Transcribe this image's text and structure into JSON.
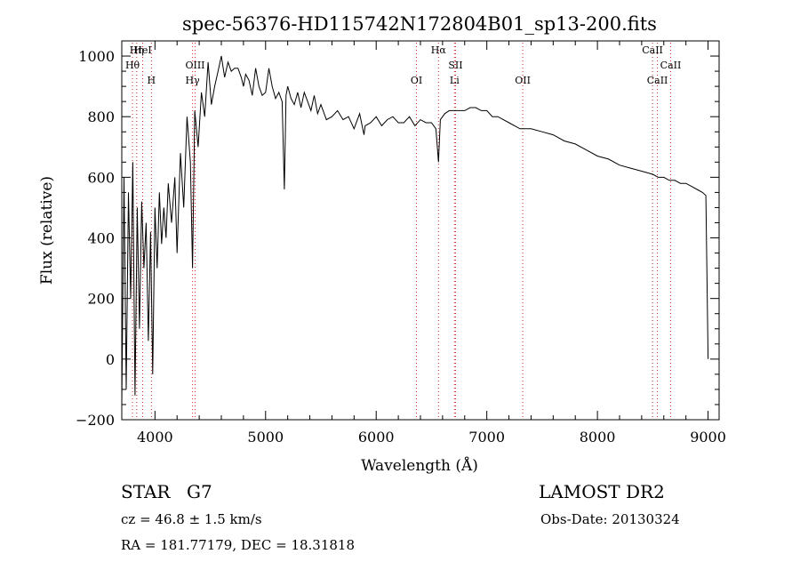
{
  "chart_data": {
    "type": "line",
    "title": "spec-56376-HD115742N172804B01_sp13-200.fits",
    "xlabel": "Wavelength (Å)",
    "ylabel": "Flux (relative)",
    "xlim": [
      3700,
      9100
    ],
    "ylim": [
      -200,
      1050
    ],
    "xticks": [
      4000,
      5000,
      6000,
      7000,
      8000,
      9000
    ],
    "yticks": [
      -200,
      0,
      200,
      400,
      600,
      800,
      1000
    ],
    "grid": false,
    "series": [
      {
        "x": [
          3700,
          3720,
          3740,
          3760,
          3780,
          3800,
          3820,
          3840,
          3860,
          3880,
          3900,
          3920,
          3940,
          3960,
          3980,
          4000,
          4020,
          4040,
          4060,
          4080,
          4100,
          4120,
          4150,
          4180,
          4200,
          4230,
          4260,
          4290,
          4320,
          4340,
          4360,
          4390,
          4420,
          4450,
          4480,
          4510,
          4540,
          4570,
          4600,
          4630,
          4660,
          4690,
          4720,
          4750,
          4780,
          4800,
          4820,
          4850,
          4880,
          4910,
          4940,
          4970,
          5000,
          5030,
          5060,
          5090,
          5120,
          5150,
          5170,
          5185,
          5200,
          5230,
          5260,
          5290,
          5320,
          5350,
          5380,
          5410,
          5440,
          5470,
          5500,
          5550,
          5600,
          5650,
          5700,
          5750,
          5800,
          5850,
          5890,
          5900,
          5950,
          6000,
          6050,
          6100,
          6150,
          6200,
          6250,
          6300,
          6350,
          6400,
          6450,
          6500,
          6540,
          6563,
          6580,
          6620,
          6660,
          6700,
          6750,
          6800,
          6850,
          6900,
          6950,
          7000,
          7050,
          7100,
          7200,
          7300,
          7400,
          7500,
          7600,
          7700,
          7800,
          7900,
          8000,
          8100,
          8200,
          8300,
          8400,
          8500,
          8550,
          8600,
          8650,
          8700,
          8750,
          8800,
          8850,
          8900,
          8950,
          8980,
          9000
        ],
        "y": [
          -150,
          600,
          -100,
          550,
          200,
          650,
          -120,
          500,
          100,
          520,
          300,
          450,
          60,
          420,
          -50,
          500,
          300,
          550,
          380,
          500,
          400,
          580,
          450,
          600,
          350,
          680,
          500,
          800,
          650,
          300,
          820,
          700,
          880,
          800,
          980,
          840,
          900,
          950,
          1000,
          930,
          980,
          950,
          960,
          960,
          930,
          900,
          940,
          920,
          870,
          960,
          900,
          870,
          880,
          960,
          900,
          860,
          880,
          850,
          560,
          870,
          900,
          860,
          840,
          880,
          830,
          880,
          850,
          820,
          870,
          810,
          840,
          790,
          800,
          820,
          790,
          800,
          760,
          810,
          740,
          770,
          780,
          800,
          770,
          790,
          800,
          780,
          780,
          800,
          770,
          790,
          780,
          780,
          760,
          650,
          790,
          810,
          820,
          820,
          820,
          820,
          830,
          830,
          820,
          820,
          800,
          800,
          780,
          760,
          760,
          750,
          740,
          720,
          710,
          690,
          670,
          660,
          640,
          630,
          620,
          610,
          600,
          600,
          590,
          590,
          580,
          580,
          570,
          560,
          550,
          540,
          0
        ]
      }
    ],
    "lines": [
      {
        "label": "Hη",
        "x": 3835
      },
      {
        "label": "Hθ",
        "x": 3797
      },
      {
        "label": "H",
        "x": 3968
      },
      {
        "label": "HeI",
        "x": 3889
      },
      {
        "label": "Hγ",
        "x": 4340
      },
      {
        "label": "OIII",
        "x": 4363
      },
      {
        "label": "OI",
        "x": 6364
      },
      {
        "label": "Hα",
        "x": 6563
      },
      {
        "label": "SII",
        "x": 6717
      },
      {
        "label": "Li",
        "x": 6708
      },
      {
        "label": "OII",
        "x": 7325
      },
      {
        "label": "CaII",
        "x": 8498
      },
      {
        "label": "CaII",
        "x": 8542
      },
      {
        "label": "CaII",
        "x": 8662
      }
    ]
  },
  "info": {
    "object_type": "STAR",
    "subclass": "G7",
    "survey": "LAMOST DR2",
    "cz": "cz = 46.8 ± 1.5 km/s",
    "obs_date": "Obs-Date: 20130324",
    "coords": "RA = 181.77179, DEC =  18.31818"
  }
}
